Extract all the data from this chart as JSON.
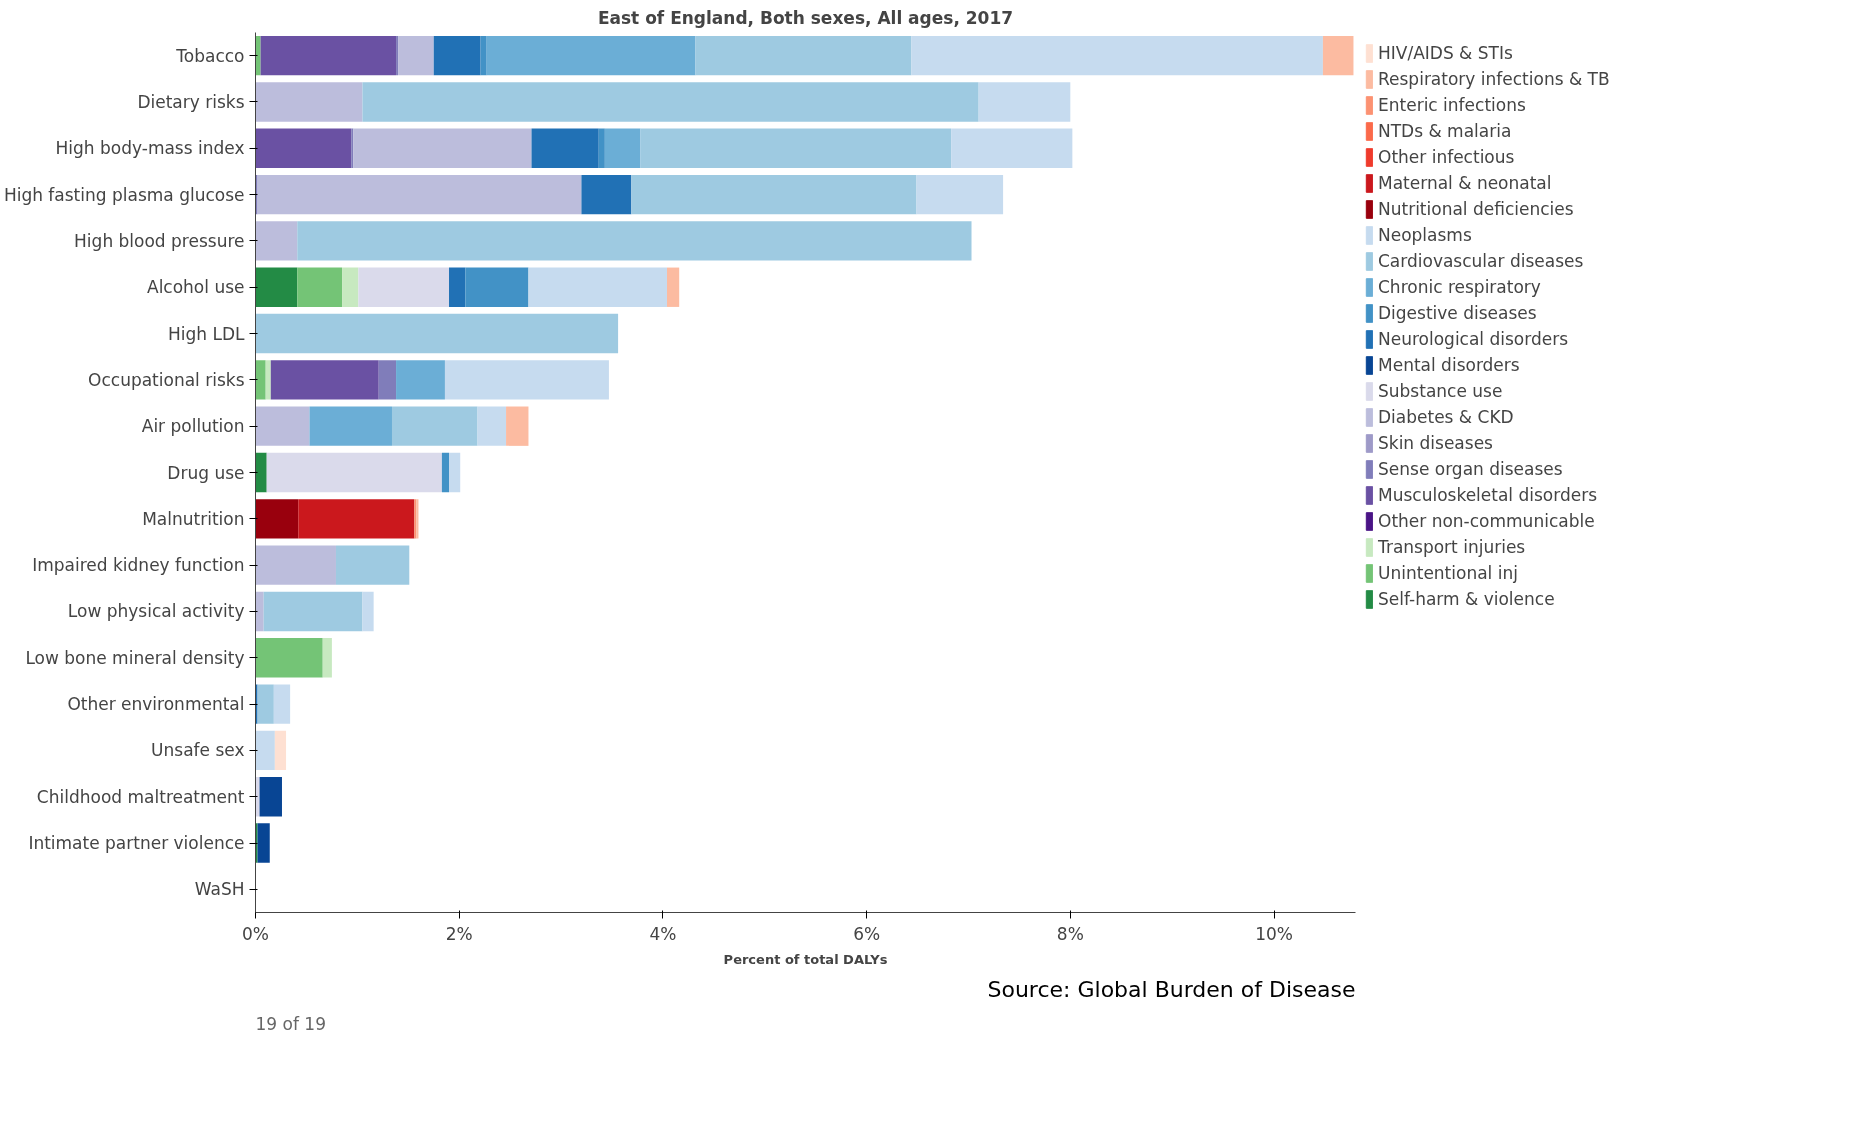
{
  "chart_data": {
    "type": "bar",
    "orientation": "horizontal",
    "stacked": true,
    "title": "East of England, Both sexes, All ages, 2017",
    "xlabel": "Percent of total DALYs",
    "categories": [
      "Tobacco",
      "Dietary risks",
      "High body-mass index",
      "High fasting plasma glucose",
      "High blood pressure",
      "Alcohol use",
      "High LDL",
      "Occupational risks",
      "Air pollution",
      "Drug use",
      "Malnutrition",
      "Impaired kidney function",
      "Low physical activity",
      "Low bone mineral density",
      "Other environmental",
      "Unsafe sex",
      "Childhood maltreatment",
      "Intimate partner violence",
      "WaSH"
    ],
    "xlim": [
      0,
      10.8
    ],
    "xticks": [
      {
        "value": 0,
        "label": "0%"
      },
      {
        "value": 2,
        "label": "2%"
      },
      {
        "value": 4,
        "label": "4%"
      },
      {
        "value": 6,
        "label": "6%"
      },
      {
        "value": 8,
        "label": "8%"
      },
      {
        "value": 10,
        "label": "10%"
      }
    ],
    "grid": false,
    "legend": "right",
    "annotations": [
      "Source: Global Burden of Disease",
      "19 of 19"
    ],
    "series": [
      {
        "name": "Self-harm & violence",
        "color": "#238b45",
        "values": [
          null,
          null,
          null,
          null,
          null,
          0.41,
          null,
          null,
          null,
          0.11,
          null,
          null,
          null,
          null,
          null,
          null,
          null,
          0.02,
          null
        ]
      },
      {
        "name": "Unintentional inj",
        "color": "#74c476",
        "values": [
          0.05,
          null,
          null,
          null,
          null,
          0.44,
          null,
          0.1,
          null,
          null,
          null,
          null,
          null,
          0.66,
          null,
          null,
          null,
          null,
          null
        ]
      },
      {
        "name": "Transport injuries",
        "color": "#c7e9c0",
        "values": [
          null,
          null,
          null,
          null,
          null,
          0.16,
          null,
          0.05,
          null,
          null,
          null,
          null,
          null,
          0.09,
          null,
          null,
          null,
          null,
          null
        ]
      },
      {
        "name": "Other non-communicable",
        "color": "#4a1486",
        "values": [
          null,
          null,
          null,
          null,
          null,
          null,
          null,
          null,
          null,
          null,
          null,
          null,
          null,
          null,
          null,
          null,
          null,
          null,
          null
        ]
      },
      {
        "name": "Musculoskeletal disorders",
        "color": "#6a51a3",
        "values": [
          1.33,
          null,
          0.94,
          null,
          null,
          null,
          null,
          1.06,
          null,
          null,
          null,
          null,
          null,
          null,
          null,
          null,
          null,
          null,
          null
        ]
      },
      {
        "name": "Sense organ diseases",
        "color": "#807dba",
        "values": [
          0.02,
          null,
          0.02,
          0.02,
          null,
          null,
          null,
          0.17,
          null,
          null,
          null,
          0.01,
          null,
          null,
          null,
          null,
          null,
          null,
          null
        ]
      },
      {
        "name": "Skin diseases",
        "color": "#9e9ac8",
        "values": [
          null,
          null,
          null,
          null,
          null,
          null,
          null,
          null,
          null,
          null,
          null,
          null,
          null,
          null,
          null,
          null,
          null,
          null,
          null
        ]
      },
      {
        "name": "Diabetes & CKD",
        "color": "#bcbddc",
        "values": [
          0.35,
          1.05,
          1.75,
          3.18,
          0.41,
          null,
          null,
          null,
          0.53,
          null,
          null,
          0.78,
          0.08,
          null,
          null,
          null,
          null,
          null,
          null
        ]
      },
      {
        "name": "Substance use",
        "color": "#dadaeb",
        "values": [
          null,
          null,
          null,
          null,
          null,
          0.89,
          null,
          null,
          null,
          1.72,
          null,
          null,
          null,
          null,
          null,
          null,
          0.04,
          null,
          null
        ]
      },
      {
        "name": "Mental disorders",
        "color": "#084594",
        "values": [
          null,
          null,
          null,
          null,
          null,
          null,
          null,
          null,
          null,
          null,
          null,
          null,
          null,
          null,
          null,
          null,
          0.22,
          0.12,
          null
        ]
      },
      {
        "name": "Neurological disorders",
        "color": "#2171b5",
        "values": [
          0.46,
          null,
          0.66,
          0.49,
          null,
          0.16,
          null,
          null,
          null,
          null,
          null,
          null,
          null,
          null,
          0.02,
          null,
          null,
          null,
          null
        ]
      },
      {
        "name": "Digestive diseases",
        "color": "#4292c6",
        "values": [
          0.06,
          null,
          0.06,
          null,
          null,
          0.62,
          null,
          null,
          null,
          0.07,
          null,
          null,
          null,
          null,
          null,
          null,
          null,
          null,
          null
        ]
      },
      {
        "name": "Chronic respiratory",
        "color": "#6baed6",
        "values": [
          2.05,
          null,
          0.35,
          null,
          null,
          null,
          null,
          0.48,
          0.81,
          null,
          null,
          null,
          null,
          null,
          null,
          null,
          null,
          null,
          null
        ]
      },
      {
        "name": "Cardiovascular diseases",
        "color": "#9ecae1",
        "values": [
          2.12,
          6.05,
          3.05,
          2.8,
          6.62,
          null,
          3.56,
          null,
          0.84,
          null,
          null,
          0.72,
          0.97,
          null,
          0.16,
          null,
          null,
          null,
          null
        ]
      },
      {
        "name": "Neoplasms",
        "color": "#c6dbef",
        "values": [
          4.04,
          0.9,
          1.19,
          0.85,
          null,
          1.36,
          null,
          1.61,
          0.28,
          0.11,
          null,
          null,
          0.11,
          null,
          0.16,
          0.19,
          null,
          null,
          null
        ]
      },
      {
        "name": "Nutritional deficiencies",
        "color": "#99000d",
        "values": [
          null,
          null,
          null,
          null,
          null,
          null,
          null,
          null,
          null,
          null,
          0.42,
          null,
          null,
          null,
          null,
          null,
          null,
          null,
          null
        ]
      },
      {
        "name": "Maternal & neonatal",
        "color": "#cb181d",
        "values": [
          null,
          null,
          null,
          null,
          null,
          null,
          null,
          null,
          null,
          null,
          1.14,
          null,
          null,
          null,
          null,
          null,
          null,
          null,
          null
        ]
      },
      {
        "name": "Other infectious",
        "color": "#ef3b2c",
        "values": [
          null,
          null,
          null,
          null,
          null,
          null,
          null,
          null,
          null,
          null,
          null,
          null,
          null,
          null,
          null,
          null,
          null,
          null,
          null
        ]
      },
      {
        "name": "NTDs & malaria",
        "color": "#fb6a4a",
        "values": [
          null,
          null,
          null,
          null,
          null,
          null,
          null,
          null,
          null,
          null,
          null,
          null,
          null,
          null,
          null,
          null,
          null,
          null,
          null
        ]
      },
      {
        "name": "Enteric infections",
        "color": "#fc9272",
        "values": [
          null,
          null,
          null,
          null,
          null,
          null,
          null,
          null,
          null,
          null,
          0.02,
          null,
          null,
          null,
          null,
          null,
          null,
          null,
          null
        ]
      },
      {
        "name": "Respiratory infections & TB",
        "color": "#fcbba1",
        "values": [
          0.3,
          null,
          null,
          null,
          null,
          0.12,
          null,
          null,
          0.22,
          null,
          0.02,
          null,
          null,
          null,
          null,
          null,
          null,
          null,
          null
        ]
      },
      {
        "name": "HIV/AIDS & STIs",
        "color": "#fee0d2",
        "values": [
          null,
          null,
          null,
          null,
          null,
          null,
          null,
          null,
          null,
          null,
          null,
          null,
          null,
          null,
          null,
          0.11,
          null,
          null,
          null
        ]
      }
    ]
  }
}
